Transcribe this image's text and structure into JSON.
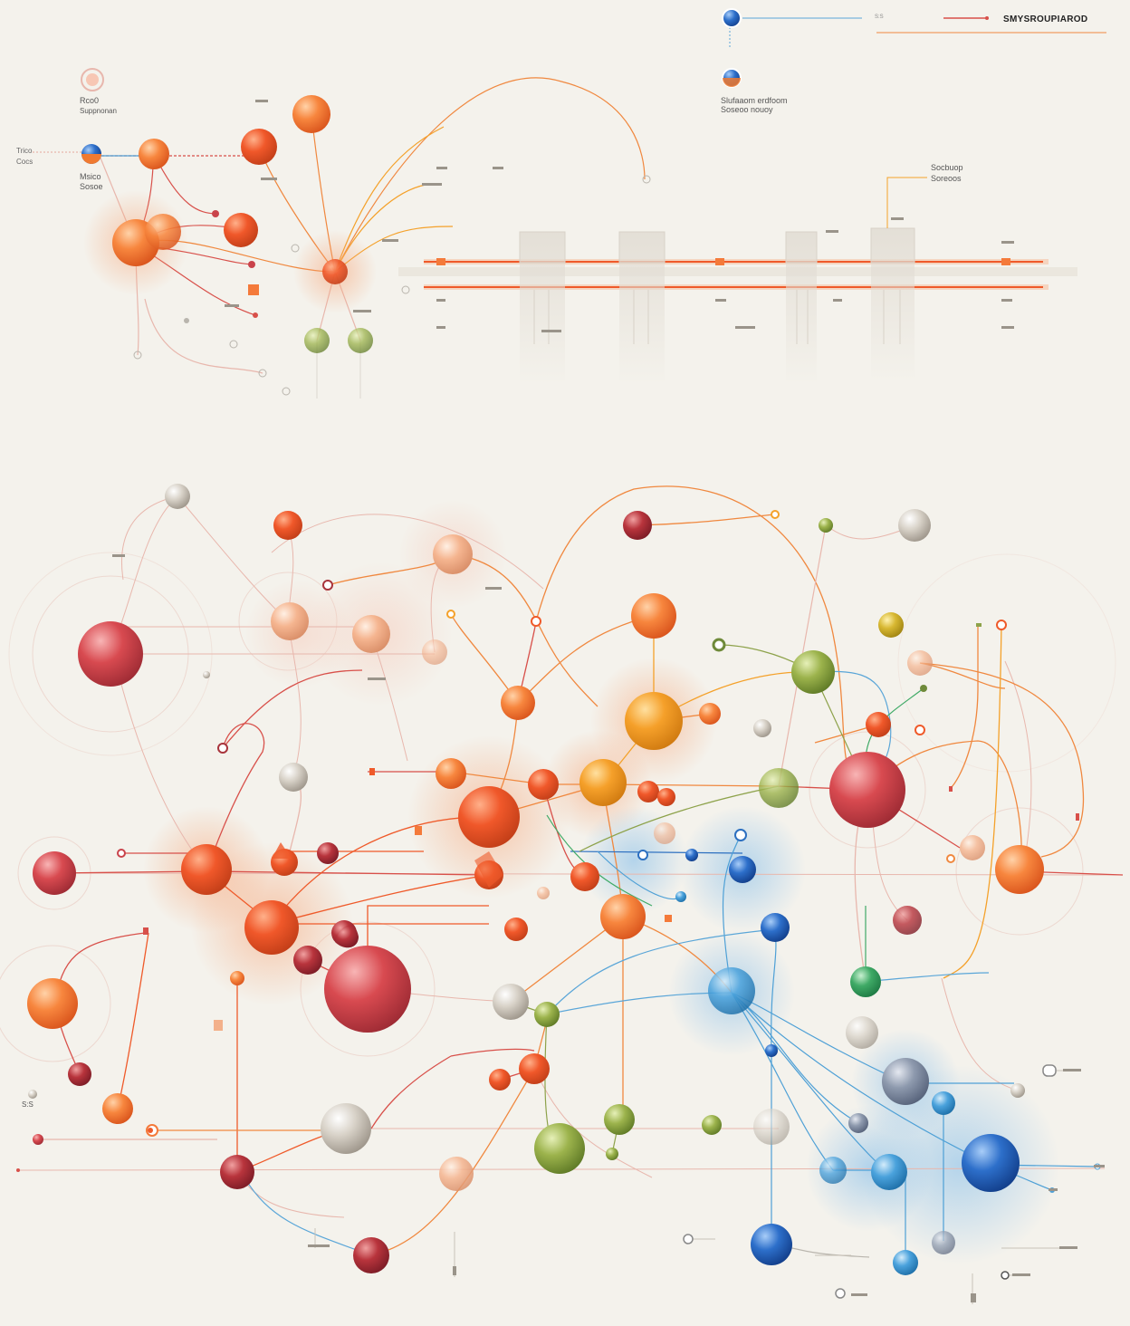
{
  "legend": {
    "title": "SMYSROUPIAROD",
    "tag": "S:S",
    "item_label": "Slufaaom erdfoom Soseoo nouoy"
  },
  "labels": {
    "tl_top": "Rco0",
    "tl_sub": "Suppnonan",
    "left_a": "Trico",
    "left_b": "Cocs",
    "mid_a": "Msico",
    "mid_b": "Sosoe",
    "right_a": "Socbuop",
    "right_b": "Soreoos",
    "bottom_left": "S:S"
  },
  "colors": {
    "orange": "#f47a3a",
    "deep_orange": "#ef5a2a",
    "amber": "#f4a12a",
    "red": "#c9434b",
    "crimson": "#a8343c",
    "green": "#8da24a",
    "olive": "#6f8a3a",
    "blue": "#2c6fc0",
    "navy": "#1c3f8c",
    "sky": "#5aa6d8",
    "peach": "#f3b08a",
    "grey": "#b9b5ad",
    "line_orange": "#f0883f",
    "line_red": "#d8504a",
    "line_blue": "#4ea0d6",
    "line_pink": "#e8b7ad"
  }
}
